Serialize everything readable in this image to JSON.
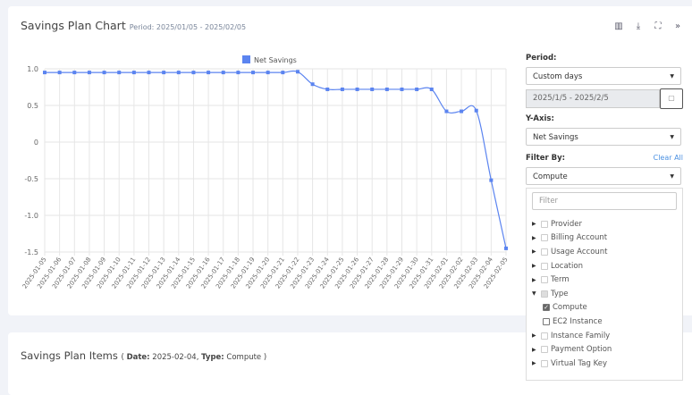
{
  "chart_card": {
    "title": "Savings Plan Chart",
    "period_text": "Period: 2025/01/05 - 2025/02/05",
    "tools": [
      {
        "icon": "bar-chart-icon",
        "glyph": "▥"
      },
      {
        "icon": "download-icon",
        "glyph": "⤓"
      },
      {
        "icon": "fullscreen-icon",
        "glyph": "⛶"
      },
      {
        "icon": "collapse-panel-icon",
        "glyph": "»"
      }
    ]
  },
  "controls": {
    "period_label": "Period:",
    "period_value": "Custom days",
    "date_range": "2025/1/5 - 2025/2/5",
    "calendar_icon": "calendar-icon",
    "yaxis_label": "Y-Axis:",
    "yaxis_value": "Net Savings",
    "filter_label": "Filter By:",
    "clear_all": "Clear All",
    "filter_value": "Compute",
    "filter_placeholder": "Filter",
    "tree": [
      {
        "label": "Provider",
        "state": "collapsed"
      },
      {
        "label": "Billing Account",
        "state": "collapsed"
      },
      {
        "label": "Usage Account",
        "state": "collapsed"
      },
      {
        "label": "Location",
        "state": "collapsed"
      },
      {
        "label": "Term",
        "state": "collapsed"
      },
      {
        "label": "Type",
        "state": "expanded",
        "checked": "partial",
        "children": [
          {
            "label": "Compute",
            "checked": true
          },
          {
            "label": "EC2 Instance",
            "checked": false
          }
        ]
      },
      {
        "label": "Instance Family",
        "state": "collapsed"
      },
      {
        "label": "Payment Option",
        "state": "collapsed"
      },
      {
        "label": "Virtual Tag Key",
        "state": "collapsed"
      }
    ]
  },
  "items_card": {
    "title": "Savings Plan Items",
    "date_label": "Date:",
    "date_value": "2025-02-04,",
    "type_label": "Type:",
    "type_value": "Compute"
  },
  "chart_data": {
    "type": "line",
    "legend": "top",
    "grid": true,
    "color": "#5b84f0",
    "series": [
      {
        "name": "Net Savings",
        "values": [
          0.95,
          0.95,
          0.95,
          0.95,
          0.95,
          0.95,
          0.95,
          0.95,
          0.95,
          0.95,
          0.95,
          0.95,
          0.95,
          0.95,
          0.95,
          0.95,
          0.95,
          0.96,
          0.79,
          0.72,
          0.72,
          0.72,
          0.72,
          0.72,
          0.72,
          0.72,
          0.72,
          0.42,
          0.42,
          0.43,
          -0.52,
          -1.45
        ]
      }
    ],
    "x": [
      "2025-01-05",
      "2025-01-06",
      "2025-01-07",
      "2025-01-08",
      "2025-01-09",
      "2025-01-10",
      "2025-01-11",
      "2025-01-12",
      "2025-01-13",
      "2025-01-14",
      "2025-01-15",
      "2025-01-16",
      "2025-01-17",
      "2025-01-18",
      "2025-01-19",
      "2025-01-20",
      "2025-01-21",
      "2025-01-22",
      "2025-01-23",
      "2025-01-24",
      "2025-01-25",
      "2025-01-26",
      "2025-01-27",
      "2025-01-28",
      "2025-01-29",
      "2025-01-30",
      "2025-01-31",
      "2025-02-01",
      "2025-02-02",
      "2025-02-03",
      "2025-02-04",
      "2025-02-05"
    ],
    "yticks": [
      "1.0",
      "0.5",
      "0",
      "-0.5",
      "-1.0",
      "-1.5"
    ],
    "ylim": [
      -1.5,
      1.0
    ]
  }
}
